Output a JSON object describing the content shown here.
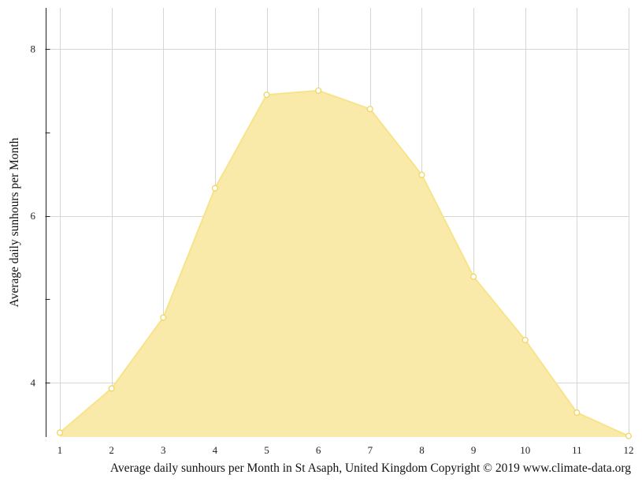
{
  "chart_data": {
    "type": "area",
    "title": "",
    "xlabel": "Average daily sunhours per Month in St Asaph, United Kingdom Copyright © 2019 www.climate-data.org",
    "ylabel": "Average daily sunhours per Month",
    "x": [
      1,
      2,
      3,
      4,
      5,
      6,
      7,
      8,
      9,
      10,
      11,
      12
    ],
    "x_tick_labels": [
      "1",
      "2",
      "3",
      "4",
      "5",
      "6",
      "7",
      "8",
      "9",
      "10",
      "11",
      "12"
    ],
    "y_ticks": [
      4,
      6,
      8
    ],
    "y_tick_labels": [
      "4",
      "6",
      "8"
    ],
    "ylim": [
      3.35,
      8.5
    ],
    "xlim": [
      1,
      12
    ],
    "grid": true,
    "legend": "none",
    "series": [
      {
        "values": [
          3.4,
          3.93,
          4.78,
          6.33,
          7.45,
          7.5,
          7.28,
          6.49,
          5.27,
          4.51,
          3.64,
          3.36
        ]
      }
    ],
    "colors": {
      "fill": "#f9eaa9",
      "stroke": "#f7e48a",
      "marker_stroke": "#f0d660",
      "marker_fill": "#ffffff",
      "grid": "#d6d6d6",
      "axis": "#222222"
    }
  }
}
